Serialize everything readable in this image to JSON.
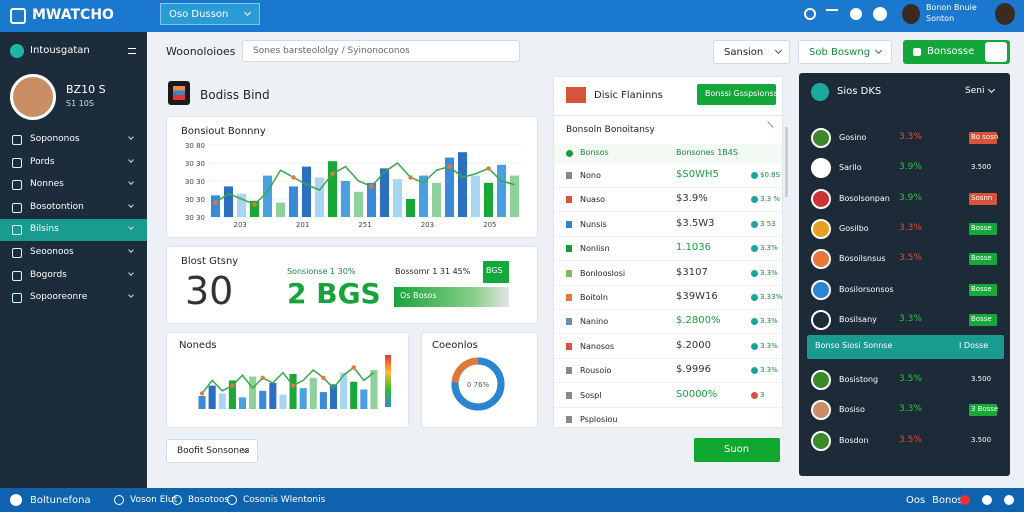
{
  "header": {
    "logo": "MWATCHO",
    "dropdown": "Oso Dusson",
    "user_name": "Bonon Bnuie",
    "user_role": "Sonton"
  },
  "sidebar": {
    "title": "Intousgatan",
    "profile_name": "BZ10 S",
    "profile_sub": "S1 10S",
    "items": [
      "Sopononos",
      "Pords",
      "Nonnes",
      "Bosotontion",
      "Bilsins",
      "Seoonoos",
      "Bogords",
      "Sopooreonre"
    ]
  },
  "toolbar": {
    "label": "Woonoloioes",
    "search": "Sones barsteololgy / Syinonoconos",
    "button1": "Sansion",
    "button2": "Sob Boswng",
    "button3": "Bonsosse"
  },
  "section": {
    "title": "Bodiss Bind"
  },
  "main_chart": {
    "title": "Bonsiout Bonnny",
    "yticks": [
      "30 80",
      "30 30",
      "30 30",
      "30 30",
      "30 30"
    ],
    "xlabels": [
      "203",
      "201",
      "251",
      "203",
      "205"
    ],
    "ylim": [
      0,
      40
    ],
    "bars": [
      12,
      17,
      13,
      9,
      23,
      8,
      17,
      28,
      22,
      31,
      20,
      14,
      19,
      27,
      21,
      10,
      23,
      19,
      33,
      36,
      23,
      19,
      29,
      23
    ],
    "line": [
      8,
      13,
      10,
      7,
      14,
      26,
      22,
      18,
      15,
      24,
      28,
      20,
      17,
      25,
      30,
      22,
      19,
      26,
      28,
      22,
      24,
      27,
      20,
      18
    ]
  },
  "stats": {
    "title": "Blost Gtsny",
    "big": "30",
    "green": "2 BGS",
    "label1": "Sonsionse 1 30%",
    "label2": "Bossomr 1 31 45%",
    "bar_label": "Os Bosos",
    "badge": "BGS"
  },
  "mini_chart": {
    "title": "Noneds",
    "ylim": [
      0,
      40
    ],
    "bars": [
      10,
      18,
      12,
      22,
      9,
      25,
      14,
      20,
      11,
      27,
      16,
      24,
      13,
      19,
      28,
      21,
      15,
      30
    ],
    "line": [
      12,
      22,
      14,
      18,
      26,
      16,
      24,
      20,
      28,
      18,
      22,
      30,
      24,
      16,
      26,
      32,
      22,
      28
    ]
  },
  "donut": {
    "title": "Coeonlos",
    "value": 76,
    "label": "0 76%"
  },
  "filter_button": "Boofit Sonsones",
  "list": {
    "title": "Disic Flaninns",
    "action": "Bonssi Gsspsionss",
    "subtitle": "Bonsoln Bonoitansy",
    "head": [
      "Bonsos",
      "Bonsones 1B4S"
    ],
    "rows": [
      [
        "Nono",
        "$S0WH5",
        "$0.8S"
      ],
      [
        "Nuaso",
        "$3.9%",
        "3.3 %"
      ],
      [
        "Nunsis",
        "$3.5W3",
        "3 53"
      ],
      [
        "Nonlisn",
        "1.1036",
        "3.3%"
      ],
      [
        "Bonlooslosi",
        "$3107",
        "3.3%"
      ],
      [
        "Boitoln",
        "$39W16",
        "3.33%"
      ],
      [
        "Nanino",
        "$.2800%",
        "3.3%"
      ],
      [
        "Nanosos",
        "$.2000",
        "3.3%"
      ],
      [
        "Rousoio",
        "$.9996",
        "3.3%"
      ],
      [
        "Sospl",
        "S0000%",
        "3"
      ],
      [
        "Psplosiou",
        "",
        ""
      ]
    ],
    "button": "Suon"
  },
  "board": {
    "title": "Sios DKS",
    "filter": "Seni",
    "rows": [
      [
        "Gosino",
        "3.3%",
        "Bo sosn"
      ],
      [
        "Sarilo",
        "3.9%",
        "3.500"
      ],
      [
        "Bosolsonpan",
        "3.9%",
        "Sosnn"
      ],
      [
        "Gosilbo",
        "3.3%",
        "Bosse"
      ],
      [
        "Bosoilsnsus",
        "3.5%",
        "Bosse"
      ],
      [
        "Bosilorsonsos",
        "",
        "Bosse"
      ],
      [
        "Bosilsany",
        "3.3%",
        "Bosse"
      ],
      [
        "Bosistong",
        "3.5%",
        "3.500"
      ],
      [
        "Bosiso",
        "3.3%",
        "3 Bosse"
      ],
      [
        "Bosdon",
        "3.5%",
        "3.500"
      ]
    ],
    "highlight": [
      "Bonso Siosi Sonnse",
      "I Dosse"
    ]
  },
  "footer": {
    "left": "Boltunefona",
    "items": [
      "Voson Elut",
      "Bosotoos",
      "Cosonis Wlentonis"
    ],
    "right1": "Oos",
    "right2": "Bonos"
  }
}
